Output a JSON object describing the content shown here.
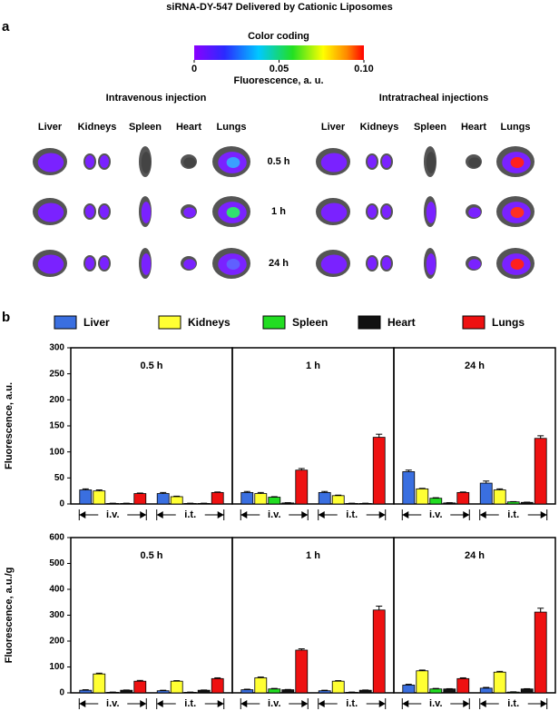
{
  "figure_a": {
    "title": "siRNA-DY-547 Delivered by Cationic Liposomes",
    "panel_label": "a",
    "colorbar": {
      "title": "Color coding",
      "xlim": [
        0,
        0.1
      ],
      "xticks": [
        0,
        0.05,
        {
          "value": 0.1,
          "label": "0.10"
        }
      ],
      "label": "Fluorescence, a. u."
    },
    "groups": [
      "Intravenous injection",
      "Intratracheal injections"
    ],
    "organs": [
      "Liver",
      "Kidneys",
      "Spleen",
      "Heart",
      "Lungs"
    ],
    "times": [
      "0.5 h",
      "1 h",
      "24 h"
    ]
  },
  "chart_data": {
    "type": "bar",
    "panel_label": "b",
    "series": [
      {
        "name": "Liver",
        "color": "#3a6fe0"
      },
      {
        "name": "Kidneys",
        "color": "#ffff33"
      },
      {
        "name": "Spleen",
        "color": "#22dd22"
      },
      {
        "name": "Heart",
        "color": "#111111"
      },
      {
        "name": "Lungs",
        "color": "#ee1111"
      }
    ],
    "panels": [
      "0.5 h",
      "1 h",
      "24 h"
    ],
    "groups": [
      "i.v.",
      "i.t."
    ],
    "rows": [
      {
        "ylabel": "Fluorescence, a.u.",
        "ylim": [
          0,
          300
        ],
        "yticks": [
          0,
          50,
          100,
          150,
          200,
          250,
          300
        ],
        "series": [
          {
            "values": [
              27,
              20,
              22,
              22,
              62,
              40
            ],
            "errors": [
              2,
              2,
              2,
              2,
              3,
              4
            ]
          },
          {
            "values": [
              25,
              14,
              20,
              16,
              29,
              27
            ],
            "errors": [
              2,
              1,
              2,
              1,
              1,
              2
            ]
          },
          {
            "values": [
              1,
              1,
              13,
              1,
              11,
              4
            ],
            "errors": [
              0.5,
              0.5,
              1,
              0.5,
              1,
              0.5
            ]
          },
          {
            "values": [
              1,
              1,
              2,
              1,
              2,
              3
            ],
            "errors": [
              0.5,
              0.5,
              0.5,
              0.5,
              0.5,
              0.5
            ]
          },
          {
            "values": [
              20,
              22,
              65,
              128,
              22,
              126
            ],
            "errors": [
              1,
              1,
              3,
              6,
              1,
              5
            ]
          }
        ]
      },
      {
        "ylabel": "Fluorescence, a.u./g",
        "ylim": [
          0,
          600
        ],
        "yticks": [
          0,
          100,
          200,
          300,
          400,
          500,
          600
        ],
        "series": [
          {
            "values": [
              10,
              8,
              12,
              8,
              30,
              18
            ],
            "errors": [
              2,
              2,
              2,
              2,
              3,
              3
            ]
          },
          {
            "values": [
              73,
              45,
              58,
              45,
              85,
              80
            ],
            "errors": [
              3,
              2,
              3,
              2,
              3,
              3
            ]
          },
          {
            "values": [
              2,
              2,
              15,
              2,
              15,
              3
            ],
            "errors": [
              1,
              1,
              2,
              1,
              2,
              1
            ]
          },
          {
            "values": [
              10,
              10,
              12,
              10,
              15,
              15
            ],
            "errors": [
              1,
              1,
              1,
              1,
              1,
              1
            ]
          },
          {
            "values": [
              45,
              55,
              165,
              320,
              55,
              312
            ],
            "errors": [
              3,
              3,
              5,
              15,
              3,
              15
            ]
          }
        ]
      }
    ]
  }
}
